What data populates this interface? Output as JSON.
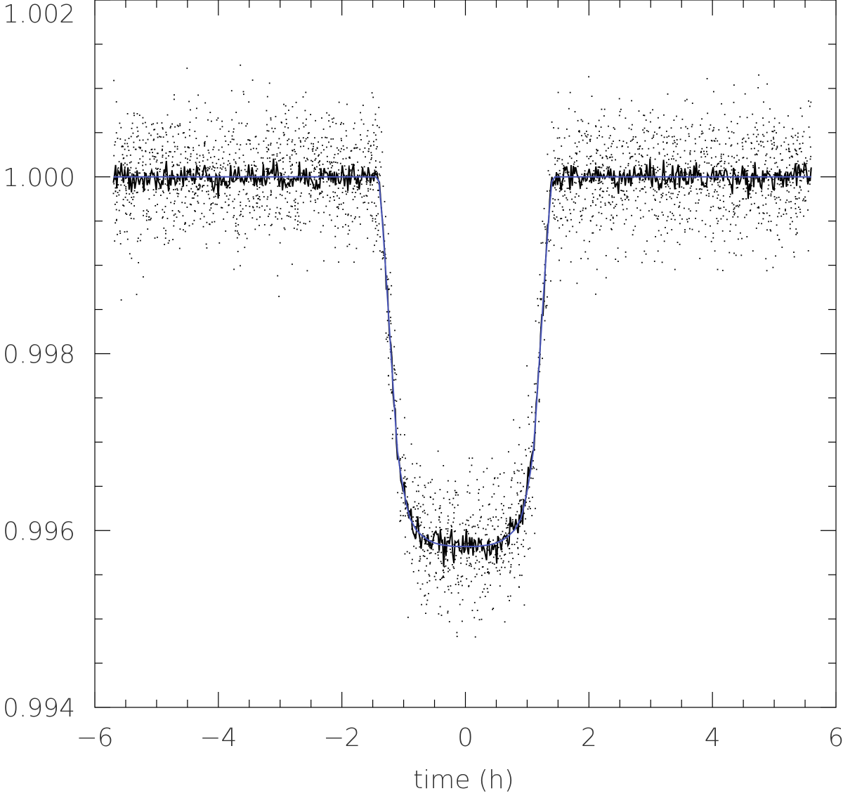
{
  "chart_data": {
    "type": "scatter",
    "title": "",
    "xlabel": "time (h)",
    "ylabel": "",
    "xlim": [
      -6,
      6
    ],
    "ylim": [
      0.994,
      1.002
    ],
    "x_ticks": [
      -6,
      -4,
      -2,
      0,
      2,
      4,
      6
    ],
    "x_tick_labels": [
      "−6",
      "−4",
      "−2",
      "0",
      "2",
      "4",
      "6"
    ],
    "x_minor_step": 0.5,
    "y_ticks": [
      0.994,
      0.996,
      0.998,
      1.0,
      1.002
    ],
    "y_tick_labels": [
      "0.994",
      "0.996",
      "0.998",
      "1.000",
      "1.002"
    ],
    "y_minor_step": 0.0005,
    "grid": false,
    "legend": "none",
    "series": [
      {
        "kind": "scatter",
        "color": "#000000",
        "x_range": [
          -5.7,
          5.6
        ],
        "n_points": 3200,
        "scatter_sigma": 0.0004
      },
      {
        "kind": "binned-line",
        "color": "#000000",
        "x_range": [
          -5.7,
          5.6
        ],
        "n_points": 620,
        "noise_sigma": 8e-05
      },
      {
        "kind": "model-line",
        "color": "#4a56b8",
        "x": [
          -5.7,
          -1.45,
          -1.4,
          -1.35,
          -1.3,
          -1.25,
          -1.2,
          -1.15,
          -1.1,
          -1.05,
          -1.0,
          -0.95,
          -0.9,
          -0.8,
          -0.7,
          -0.6,
          -0.5,
          -0.4,
          -0.3,
          -0.2,
          -0.1,
          0.0,
          0.1,
          0.2,
          0.3,
          0.4,
          0.5,
          0.6,
          0.7,
          0.8,
          0.9,
          0.95,
          1.0,
          1.05,
          1.1,
          1.15,
          1.2,
          1.25,
          1.3,
          1.35,
          1.4,
          1.45,
          5.6
        ],
        "y": [
          1.0,
          1.0,
          0.99995,
          0.99955,
          0.99905,
          0.9985,
          0.99795,
          0.9974,
          0.9969,
          0.99665,
          0.99645,
          0.99628,
          0.99614,
          0.99601,
          0.99594,
          0.99589,
          0.99586,
          0.99584,
          0.99583,
          0.99582,
          0.99582,
          0.99582,
          0.99582,
          0.99582,
          0.99583,
          0.99584,
          0.99586,
          0.99589,
          0.99594,
          0.99601,
          0.99614,
          0.99628,
          0.99645,
          0.99665,
          0.9969,
          0.9974,
          0.99795,
          0.9985,
          0.99905,
          0.99955,
          0.99995,
          1.0,
          1.0
        ]
      }
    ]
  }
}
